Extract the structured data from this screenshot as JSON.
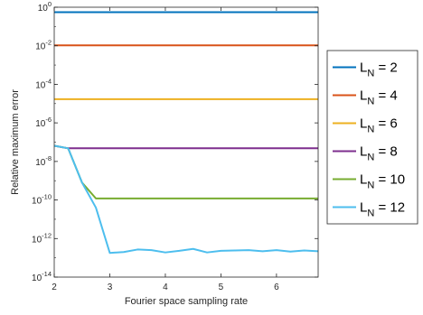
{
  "chart_data": {
    "type": "line",
    "title": "",
    "xlabel": "Fourier space sampling rate",
    "ylabel": "Relative maximum error",
    "xlim": [
      2,
      6.75
    ],
    "ylim": [
      1e-14,
      1
    ],
    "yscale": "log",
    "x_ticks": [
      2,
      3,
      4,
      5,
      6
    ],
    "x_tick_labels": [
      "2",
      "3",
      "4",
      "5",
      "6"
    ],
    "y_ticks": [
      1e-14,
      1e-12,
      1e-10,
      1e-08,
      1e-06,
      0.0001,
      0.01,
      1
    ],
    "y_tick_labels": [
      {
        "base": "10",
        "exp": "-14"
      },
      {
        "base": "10",
        "exp": "-12"
      },
      {
        "base": "10",
        "exp": "-10"
      },
      {
        "base": "10",
        "exp": "-8"
      },
      {
        "base": "10",
        "exp": "-6"
      },
      {
        "base": "10",
        "exp": "-4"
      },
      {
        "base": "10",
        "exp": "-2"
      },
      {
        "base": "10",
        "exp": "0"
      }
    ],
    "grid": false,
    "legend_position": "outside-right",
    "series": [
      {
        "name": {
          "main": "L",
          "sub": "N",
          "rest": " = 2"
        },
        "color": "#0072BD",
        "points": [
          [
            2,
            0.55
          ],
          [
            6.75,
            0.55
          ]
        ]
      },
      {
        "name": {
          "main": "L",
          "sub": "N",
          "rest": " = 4"
        },
        "color": "#D95319",
        "points": [
          [
            2,
            0.0105
          ],
          [
            6.75,
            0.0105
          ]
        ]
      },
      {
        "name": {
          "main": "L",
          "sub": "N",
          "rest": " = 6"
        },
        "color": "#EDB120",
        "points": [
          [
            2,
            1.7e-05
          ],
          [
            6.75,
            1.7e-05
          ]
        ]
      },
      {
        "name": {
          "main": "L",
          "sub": "N",
          "rest": " = 8"
        },
        "color": "#7E2F8E",
        "points": [
          [
            2,
            6.5e-08
          ],
          [
            2.25,
            4.8e-08
          ],
          [
            6.75,
            4.8e-08
          ]
        ]
      },
      {
        "name": {
          "main": "L",
          "sub": "N",
          "rest": " = 10"
        },
        "color": "#77AC30",
        "points": [
          [
            2,
            6.5e-08
          ],
          [
            2.25,
            4.8e-08
          ],
          [
            2.5,
            8e-10
          ],
          [
            2.75,
            1.2e-10
          ],
          [
            6.75,
            1.2e-10
          ],
          [
            6.8,
            1e-10
          ]
        ]
      },
      {
        "name": {
          "main": "L",
          "sub": "N",
          "rest": " = 12"
        },
        "color": "#4DBEEE",
        "points": [
          [
            2,
            6.5e-08
          ],
          [
            2.25,
            4.8e-08
          ],
          [
            2.5,
            8e-10
          ],
          [
            2.75,
            4e-11
          ],
          [
            3,
            1.8e-13
          ],
          [
            3.25,
            2e-13
          ],
          [
            3.5,
            2.7e-13
          ],
          [
            3.75,
            2.5e-13
          ],
          [
            4,
            1.9e-13
          ],
          [
            4.25,
            2.3e-13
          ],
          [
            4.5,
            2.9e-13
          ],
          [
            4.75,
            1.9e-13
          ],
          [
            5,
            2.3e-13
          ],
          [
            5.25,
            2.4e-13
          ],
          [
            5.5,
            2.5e-13
          ],
          [
            5.75,
            2.2e-13
          ],
          [
            6,
            2.5e-13
          ],
          [
            6.25,
            2.1e-13
          ],
          [
            6.5,
            2.4e-13
          ],
          [
            6.75,
            2.2e-13
          ]
        ]
      }
    ]
  }
}
